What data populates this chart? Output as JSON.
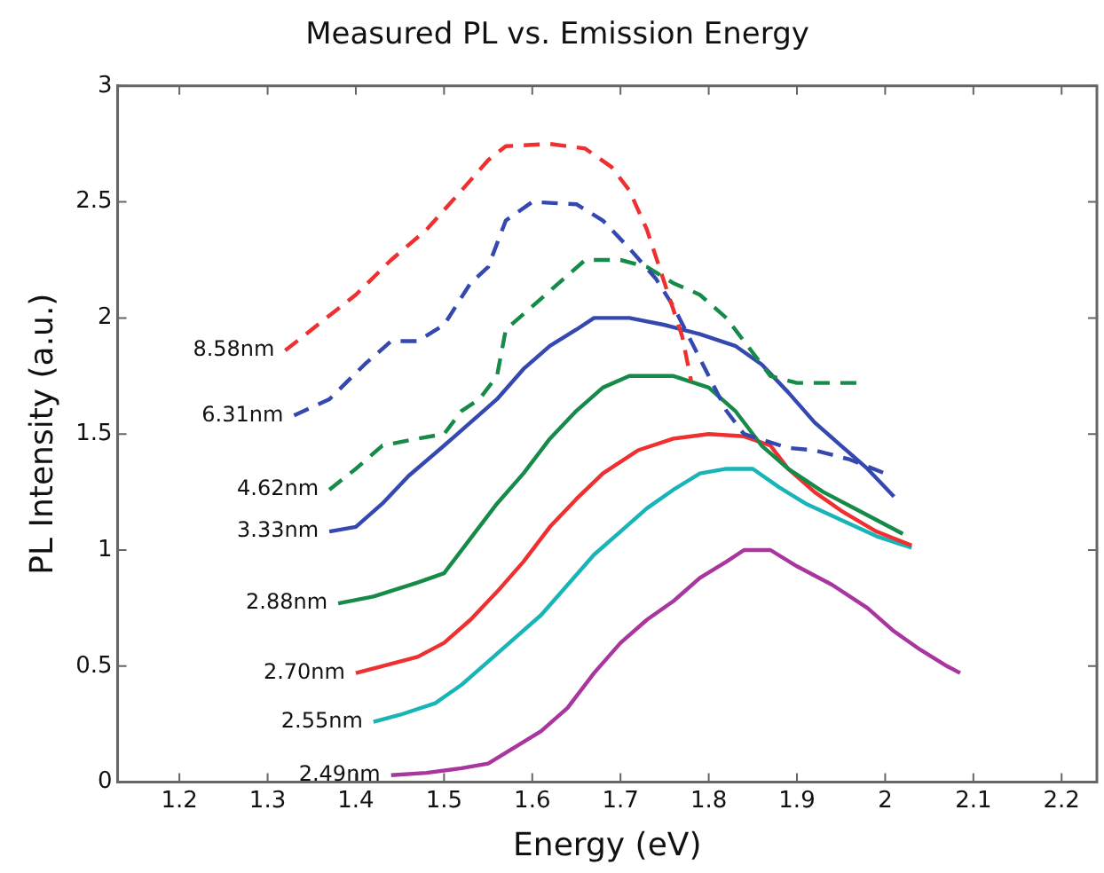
{
  "chart_data": {
    "type": "line",
    "title": "Measured PL vs. Emission Energy",
    "xlabel": "Energy (eV)",
    "ylabel": "PL Intensity (a.u.)",
    "xlim": [
      1.13,
      2.24
    ],
    "xticks": [
      1.2,
      1.3,
      1.4,
      1.5,
      1.6,
      1.7,
      1.8,
      1.9,
      2,
      2.1,
      2.2
    ],
    "ylim": [
      0,
      3
    ],
    "yticks": [
      0,
      0.5,
      1,
      1.5,
      2,
      2.5,
      3
    ],
    "grid": false,
    "legend": false,
    "marker": "none",
    "series": [
      {
        "name": "8.58nm",
        "color": "#ee3030",
        "line_style": "dashed",
        "x": [
          1.32,
          1.36,
          1.4,
          1.44,
          1.48,
          1.52,
          1.55,
          1.57,
          1.62,
          1.66,
          1.69,
          1.71,
          1.73,
          1.75,
          1.77,
          1.78
        ],
        "values": [
          1.86,
          1.98,
          2.1,
          2.25,
          2.38,
          2.55,
          2.68,
          2.74,
          2.75,
          2.73,
          2.65,
          2.55,
          2.38,
          2.15,
          1.92,
          1.73
        ]
      },
      {
        "name": "6.31nm",
        "color": "#3548b0",
        "line_style": "dashed",
        "x": [
          1.33,
          1.37,
          1.41,
          1.44,
          1.47,
          1.5,
          1.53,
          1.55,
          1.57,
          1.6,
          1.65,
          1.68,
          1.71,
          1.74,
          1.76,
          1.78,
          1.8,
          1.82,
          1.84,
          1.89,
          1.92,
          1.96,
          2.0
        ],
        "values": [
          1.58,
          1.65,
          1.8,
          1.9,
          1.9,
          1.97,
          2.15,
          2.22,
          2.42,
          2.5,
          2.49,
          2.42,
          2.3,
          2.17,
          2.05,
          1.9,
          1.75,
          1.6,
          1.5,
          1.44,
          1.43,
          1.39,
          1.33
        ]
      },
      {
        "name": "4.62nm",
        "color": "#168a48",
        "line_style": "dashed",
        "x": [
          1.37,
          1.4,
          1.43,
          1.47,
          1.5,
          1.52,
          1.54,
          1.56,
          1.57,
          1.6,
          1.63,
          1.66,
          1.7,
          1.73,
          1.76,
          1.79,
          1.82,
          1.84,
          1.87,
          1.9,
          1.95,
          1.97
        ],
        "values": [
          1.26,
          1.35,
          1.45,
          1.48,
          1.5,
          1.6,
          1.65,
          1.75,
          1.95,
          2.05,
          2.15,
          2.25,
          2.25,
          2.22,
          2.15,
          2.1,
          2.0,
          1.9,
          1.75,
          1.72,
          1.72,
          1.72
        ]
      },
      {
        "name": "3.33nm",
        "color": "#3548b0",
        "line_style": "solid",
        "x": [
          1.37,
          1.4,
          1.43,
          1.46,
          1.5,
          1.53,
          1.56,
          1.59,
          1.62,
          1.65,
          1.67,
          1.71,
          1.75,
          1.79,
          1.83,
          1.86,
          1.89,
          1.92,
          1.95,
          1.98,
          2.01
        ],
        "values": [
          1.08,
          1.1,
          1.2,
          1.32,
          1.45,
          1.55,
          1.65,
          1.78,
          1.88,
          1.95,
          2.0,
          2.0,
          1.97,
          1.93,
          1.88,
          1.8,
          1.68,
          1.55,
          1.45,
          1.35,
          1.23
        ]
      },
      {
        "name": "2.88nm",
        "color": "#168a48",
        "line_style": "solid",
        "x": [
          1.38,
          1.42,
          1.47,
          1.5,
          1.53,
          1.56,
          1.59,
          1.62,
          1.65,
          1.68,
          1.71,
          1.76,
          1.8,
          1.83,
          1.86,
          1.89,
          1.93,
          1.97,
          2.02
        ],
        "values": [
          0.77,
          0.8,
          0.86,
          0.9,
          1.05,
          1.2,
          1.33,
          1.48,
          1.6,
          1.7,
          1.75,
          1.75,
          1.7,
          1.6,
          1.45,
          1.35,
          1.25,
          1.17,
          1.07
        ]
      },
      {
        "name": "2.70nm",
        "color": "#ee3030",
        "line_style": "solid",
        "x": [
          1.4,
          1.43,
          1.47,
          1.5,
          1.53,
          1.56,
          1.59,
          1.62,
          1.65,
          1.68,
          1.72,
          1.76,
          1.8,
          1.84,
          1.87,
          1.89,
          1.92,
          1.95,
          1.99,
          2.03
        ],
        "values": [
          0.47,
          0.5,
          0.54,
          0.6,
          0.7,
          0.82,
          0.95,
          1.1,
          1.22,
          1.33,
          1.43,
          1.48,
          1.5,
          1.49,
          1.45,
          1.35,
          1.25,
          1.17,
          1.08,
          1.02
        ]
      },
      {
        "name": "2.55nm",
        "color": "#18b4b8",
        "line_style": "solid",
        "x": [
          1.42,
          1.45,
          1.49,
          1.52,
          1.55,
          1.58,
          1.61,
          1.64,
          1.67,
          1.7,
          1.73,
          1.76,
          1.79,
          1.82,
          1.85,
          1.88,
          1.91,
          1.95,
          1.99,
          2.03
        ],
        "values": [
          0.26,
          0.29,
          0.34,
          0.42,
          0.52,
          0.62,
          0.72,
          0.85,
          0.98,
          1.08,
          1.18,
          1.26,
          1.33,
          1.35,
          1.35,
          1.27,
          1.2,
          1.13,
          1.06,
          1.01
        ]
      },
      {
        "name": "2.49nm",
        "color": "#a8369e",
        "line_style": "solid",
        "x": [
          1.44,
          1.48,
          1.52,
          1.55,
          1.58,
          1.61,
          1.64,
          1.67,
          1.7,
          1.73,
          1.76,
          1.79,
          1.82,
          1.84,
          1.87,
          1.9,
          1.94,
          1.98,
          2.01,
          2.04,
          2.07,
          2.085
        ],
        "values": [
          0.03,
          0.04,
          0.06,
          0.08,
          0.15,
          0.22,
          0.32,
          0.47,
          0.6,
          0.7,
          0.78,
          0.88,
          0.95,
          1.0,
          1.0,
          0.93,
          0.85,
          0.75,
          0.65,
          0.57,
          0.5,
          0.47
        ]
      }
    ]
  }
}
